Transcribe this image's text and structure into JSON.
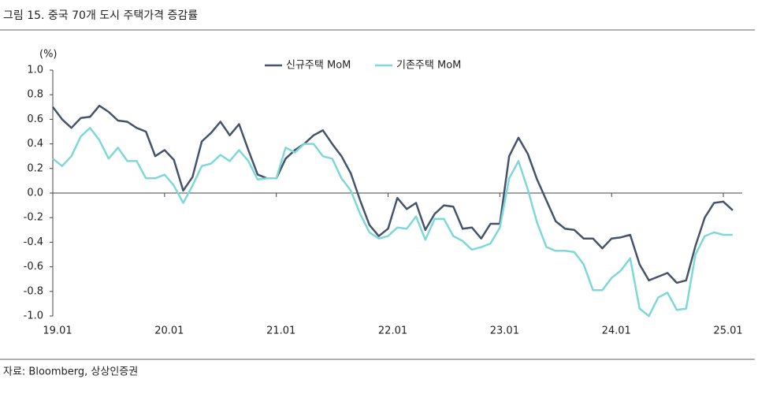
{
  "chart_data": {
    "type": "line",
    "title": "그림 15. 중국 70개 도시 주택가격 증감률",
    "source": "자료: Bloomberg, 상상인증권",
    "y_unit": "(%)",
    "categories": [
      "19.01",
      null,
      null,
      null,
      null,
      null,
      null,
      null,
      null,
      null,
      null,
      null,
      "20.01",
      null,
      null,
      null,
      null,
      null,
      null,
      null,
      null,
      null,
      null,
      null,
      "21.01",
      null,
      null,
      null,
      null,
      null,
      null,
      null,
      null,
      null,
      null,
      null,
      "22.01",
      null,
      null,
      null,
      null,
      null,
      null,
      null,
      null,
      null,
      null,
      null,
      "23.01",
      null,
      null,
      null,
      null,
      null,
      null,
      null,
      null,
      null,
      null,
      null,
      "24.01",
      null,
      null,
      null,
      null,
      null,
      null,
      null,
      null,
      null,
      null,
      null,
      "25.01",
      null
    ],
    "series": [
      {
        "name": "신규주택 MoM",
        "color": "#44546a",
        "values": [
          0.7,
          0.6,
          0.53,
          0.61,
          0.62,
          0.71,
          0.66,
          0.59,
          0.58,
          0.53,
          0.5,
          0.3,
          0.35,
          0.27,
          0.02,
          0.13,
          0.42,
          0.49,
          0.58,
          0.47,
          0.56,
          0.35,
          0.15,
          0.12,
          0.12,
          0.28,
          0.35,
          0.4,
          0.47,
          0.51,
          0.4,
          0.3,
          0.16,
          -0.06,
          -0.26,
          -0.35,
          -0.29,
          -0.04,
          -0.13,
          -0.08,
          -0.3,
          -0.17,
          -0.1,
          -0.11,
          -0.29,
          -0.28,
          -0.37,
          -0.25,
          -0.25,
          0.3,
          0.45,
          0.32,
          0.11,
          -0.06,
          -0.23,
          -0.29,
          -0.3,
          -0.37,
          -0.37,
          -0.45,
          -0.37,
          -0.36,
          -0.34,
          -0.58,
          -0.71,
          -0.68,
          -0.65,
          -0.73,
          -0.71,
          -0.43,
          -0.2,
          -0.08,
          -0.07,
          -0.14
        ]
      },
      {
        "name": "기존주택 MoM",
        "color": "#7fd8d8",
        "values": [
          0.28,
          0.22,
          0.3,
          0.46,
          0.53,
          0.43,
          0.28,
          0.37,
          0.26,
          0.26,
          0.12,
          0.12,
          0.15,
          0.06,
          -0.08,
          0.06,
          0.22,
          0.24,
          0.31,
          0.26,
          0.35,
          0.26,
          0.11,
          0.12,
          0.12,
          0.37,
          0.33,
          0.4,
          0.4,
          0.3,
          0.28,
          0.12,
          0.02,
          -0.17,
          -0.32,
          -0.37,
          -0.35,
          -0.28,
          -0.29,
          -0.19,
          -0.38,
          -0.21,
          -0.21,
          -0.35,
          -0.39,
          -0.46,
          -0.44,
          -0.41,
          -0.28,
          0.12,
          0.26,
          0.03,
          -0.24,
          -0.44,
          -0.47,
          -0.47,
          -0.48,
          -0.58,
          -0.79,
          -0.79,
          -0.69,
          -0.63,
          -0.53,
          -0.94,
          -1.0,
          -0.85,
          -0.81,
          -0.95,
          -0.94,
          -0.5,
          -0.35,
          -0.32,
          -0.34,
          -0.34
        ]
      }
    ],
    "ylim": [
      -1,
      1
    ],
    "yticks": [
      {
        "value": -1,
        "label": "-1.0"
      },
      -0.8,
      -0.6,
      -0.4,
      -0.2,
      {
        "value": 0,
        "label": "0.0"
      },
      0.2,
      0.4,
      0.6,
      0.8,
      {
        "value": 1,
        "label": "1.0"
      }
    ]
  }
}
